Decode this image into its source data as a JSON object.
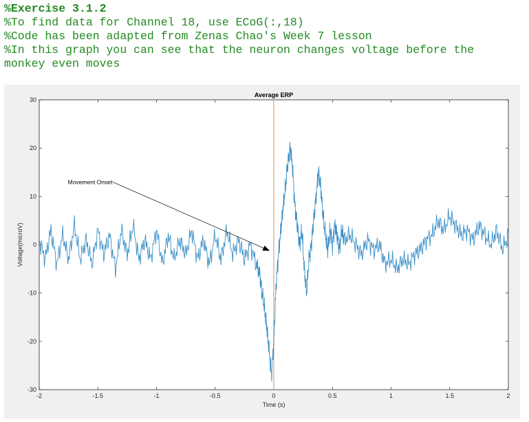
{
  "code_comments": {
    "heading": "%Exercise 3.1.2",
    "lines": [
      "%To find data for Channel 18, use ECoG(:,18)",
      "%Code has been adapted from Zenas Chao's Week 7 lesson",
      "%In this graph you can see that the neuron changes voltage before the",
      "monkey even moves"
    ]
  },
  "colors": {
    "comment": "#228B22",
    "series": "#3a8fc7",
    "onset_line": "#d9a37a",
    "figure_bg": "#f0f0f0",
    "axes_bg": "#ffffff"
  },
  "chart_data": {
    "type": "line",
    "title": "Average ERP",
    "xlabel": "Time (s)",
    "ylabel": "Voltage(microV)",
    "xlim": [
      -2,
      2
    ],
    "ylim": [
      -30,
      30
    ],
    "xticks": [
      -2,
      -1.5,
      -1,
      -0.5,
      0,
      0.5,
      1,
      1.5,
      2
    ],
    "xtick_labels": [
      "-2",
      "-1.5",
      "-1",
      "-0.5",
      "0",
      "0.5",
      "1",
      "1.5",
      "2"
    ],
    "yticks": [
      -30,
      -20,
      -10,
      0,
      10,
      20,
      30
    ],
    "ytick_labels": [
      "-30",
      "-20",
      "-10",
      "0",
      "10",
      "20",
      "30"
    ],
    "grid": false,
    "vertical_line": {
      "x": 0
    },
    "annotation": {
      "text": "Movement Onset",
      "text_at": [
        -1.75,
        13
      ],
      "arrow_to": [
        -0.04,
        -1.2
      ]
    },
    "series": [
      {
        "name": "Average ERP",
        "x": [
          -2.0,
          -1.95,
          -1.9,
          -1.85,
          -1.8,
          -1.75,
          -1.7,
          -1.65,
          -1.6,
          -1.55,
          -1.5,
          -1.45,
          -1.4,
          -1.35,
          -1.3,
          -1.25,
          -1.2,
          -1.15,
          -1.1,
          -1.05,
          -1.0,
          -0.95,
          -0.9,
          -0.85,
          -0.8,
          -0.75,
          -0.7,
          -0.65,
          -0.6,
          -0.55,
          -0.5,
          -0.45,
          -0.4,
          -0.35,
          -0.3,
          -0.25,
          -0.2,
          -0.15,
          -0.12,
          -0.1,
          -0.08,
          -0.06,
          -0.04,
          -0.02,
          0.0,
          0.02,
          0.04,
          0.06,
          0.08,
          0.1,
          0.12,
          0.14,
          0.16,
          0.18,
          0.2,
          0.22,
          0.24,
          0.26,
          0.28,
          0.3,
          0.32,
          0.34,
          0.36,
          0.38,
          0.4,
          0.42,
          0.44,
          0.46,
          0.48,
          0.5,
          0.52,
          0.54,
          0.56,
          0.58,
          0.6,
          0.65,
          0.7,
          0.75,
          0.8,
          0.85,
          0.9,
          0.95,
          1.0,
          1.05,
          1.1,
          1.15,
          1.2,
          1.25,
          1.3,
          1.35,
          1.4,
          1.45,
          1.5,
          1.55,
          1.6,
          1.65,
          1.7,
          1.75,
          1.8,
          1.85,
          1.9,
          1.95,
          2.0
        ],
        "y": [
          1,
          -3,
          3,
          -4,
          2,
          -3,
          4,
          -3,
          1,
          -4,
          3,
          -2,
          2,
          -5,
          3,
          -2,
          4,
          -3,
          1,
          -3,
          3,
          -4,
          2,
          -3,
          1,
          -2,
          3,
          -3,
          1,
          -4,
          2,
          -3,
          3,
          -2,
          1,
          -3,
          0,
          -4,
          -6,
          -10,
          -13,
          -17,
          -22,
          -27,
          -20,
          -8,
          -2,
          3,
          8,
          12,
          17,
          20,
          16,
          8,
          4,
          0,
          3,
          -5,
          -10,
          -3,
          0,
          5,
          10,
          15,
          12,
          6,
          2,
          -1,
          3,
          0,
          4,
          2,
          -1,
          3,
          1,
          2,
          0,
          -2,
          1,
          -1,
          0,
          -4,
          -3,
          -5,
          -3,
          -4,
          -2,
          -1,
          1,
          2,
          5,
          3,
          6,
          4,
          2,
          3,
          1,
          4,
          2,
          0,
          3,
          -1,
          2
        ]
      }
    ]
  }
}
